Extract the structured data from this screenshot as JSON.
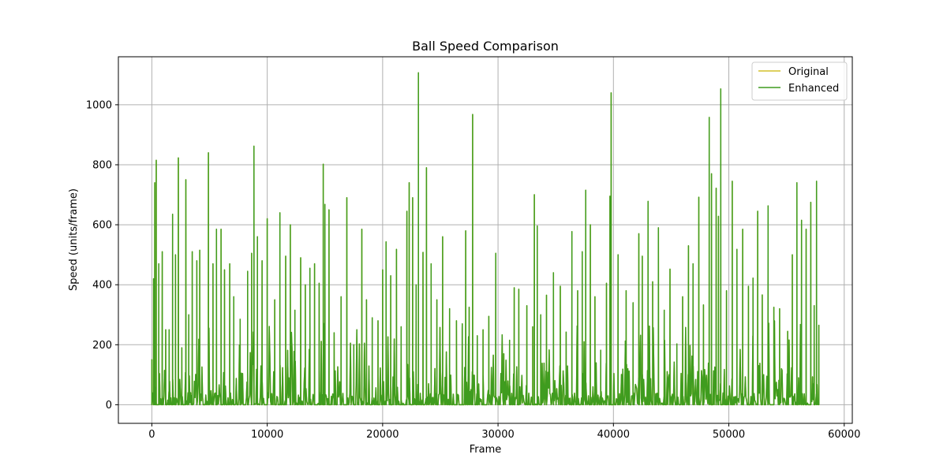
{
  "chart_data": {
    "type": "line",
    "title": "Ball Speed Comparison",
    "xlabel": "Frame",
    "ylabel": "Speed (units/frame)",
    "xlim": [
      -2900,
      60700
    ],
    "ylim": [
      -62,
      1160
    ],
    "xticks": [
      0,
      10000,
      20000,
      30000,
      40000,
      50000,
      60000
    ],
    "xtick_labels": [
      "0",
      "10000",
      "20000",
      "30000",
      "40000",
      "50000",
      "60000"
    ],
    "yticks": [
      0,
      200,
      400,
      600,
      800,
      1000
    ],
    "ytick_labels": [
      "0",
      "200",
      "400",
      "600",
      "800",
      "1000"
    ],
    "grid": true,
    "legend_position": "top-right",
    "x_max": 57800,
    "series": [
      {
        "name": "Original",
        "color": "#d4c12a",
        "peaks": [
          [
            0,
            150
          ],
          [
            150,
            420
          ],
          [
            250,
            740
          ],
          [
            380,
            815
          ],
          [
            600,
            470
          ],
          [
            900,
            510
          ],
          [
            1200,
            250
          ],
          [
            1500,
            250
          ],
          [
            1800,
            635
          ],
          [
            2050,
            500
          ],
          [
            2300,
            823
          ],
          [
            2600,
            190
          ],
          [
            2950,
            750
          ],
          [
            3200,
            300
          ],
          [
            3500,
            510
          ],
          [
            3900,
            480
          ],
          [
            4150,
            515
          ],
          [
            4900,
            840
          ],
          [
            5300,
            470
          ],
          [
            5600,
            585
          ],
          [
            6000,
            585
          ],
          [
            6300,
            450
          ],
          [
            6750,
            470
          ],
          [
            7100,
            360
          ],
          [
            7650,
            285
          ],
          [
            8300,
            445
          ],
          [
            8650,
            505
          ],
          [
            8850,
            862
          ],
          [
            9150,
            560
          ],
          [
            9550,
            480
          ],
          [
            10000,
            620
          ],
          [
            10650,
            350
          ],
          [
            11100,
            640
          ],
          [
            11600,
            495
          ],
          [
            12000,
            600
          ],
          [
            12400,
            315
          ],
          [
            12900,
            490
          ],
          [
            13300,
            400
          ],
          [
            13700,
            455
          ],
          [
            14100,
            470
          ],
          [
            14500,
            405
          ],
          [
            14850,
            802
          ],
          [
            15000,
            668
          ],
          [
            15350,
            650
          ],
          [
            15800,
            240
          ],
          [
            16400,
            360
          ],
          [
            16900,
            690
          ],
          [
            17500,
            200
          ],
          [
            18200,
            585
          ],
          [
            18600,
            350
          ],
          [
            19100,
            290
          ],
          [
            19600,
            280
          ],
          [
            20000,
            450
          ],
          [
            20300,
            543
          ],
          [
            20700,
            430
          ],
          [
            21200,
            518
          ],
          [
            21600,
            260
          ],
          [
            22100,
            645
          ],
          [
            22300,
            740
          ],
          [
            22600,
            690
          ],
          [
            22900,
            400
          ],
          [
            23100,
            1107
          ],
          [
            23500,
            508
          ],
          [
            23800,
            790
          ],
          [
            24200,
            470
          ],
          [
            24700,
            350
          ],
          [
            25200,
            560
          ],
          [
            25800,
            320
          ],
          [
            26400,
            280
          ],
          [
            26900,
            270
          ],
          [
            27200,
            580
          ],
          [
            27500,
            325
          ],
          [
            27800,
            968
          ],
          [
            28200,
            230
          ],
          [
            28700,
            250
          ],
          [
            29200,
            295
          ],
          [
            29800,
            505
          ],
          [
            30500,
            170
          ],
          [
            31000,
            215
          ],
          [
            31400,
            390
          ],
          [
            31800,
            385
          ],
          [
            32500,
            330
          ],
          [
            33000,
            260
          ],
          [
            33150,
            700
          ],
          [
            33400,
            596
          ],
          [
            33700,
            300
          ],
          [
            34200,
            365
          ],
          [
            34800,
            440
          ],
          [
            35400,
            395
          ],
          [
            35900,
            242
          ],
          [
            36400,
            577
          ],
          [
            36900,
            380
          ],
          [
            37300,
            510
          ],
          [
            37600,
            715
          ],
          [
            38000,
            600
          ],
          [
            38400,
            360
          ],
          [
            38900,
            182
          ],
          [
            39400,
            405
          ],
          [
            39700,
            695
          ],
          [
            39800,
            1040
          ],
          [
            40400,
            500
          ],
          [
            41100,
            380
          ],
          [
            41700,
            340
          ],
          [
            42200,
            570
          ],
          [
            42500,
            495
          ],
          [
            43000,
            678
          ],
          [
            43400,
            410
          ],
          [
            43900,
            590
          ],
          [
            44400,
            315
          ],
          [
            44900,
            452
          ],
          [
            45500,
            203
          ],
          [
            46000,
            360
          ],
          [
            46500,
            530
          ],
          [
            46900,
            470
          ],
          [
            47400,
            692
          ],
          [
            47800,
            333
          ],
          [
            48300,
            958
          ],
          [
            48500,
            770
          ],
          [
            48900,
            722
          ],
          [
            49100,
            628
          ],
          [
            49300,
            1053
          ],
          [
            49800,
            380
          ],
          [
            50300,
            745
          ],
          [
            50700,
            518
          ],
          [
            51200,
            585
          ],
          [
            51700,
            395
          ],
          [
            52100,
            422
          ],
          [
            52500,
            645
          ],
          [
            52900,
            366
          ],
          [
            53400,
            663
          ],
          [
            53900,
            325
          ],
          [
            54400,
            320
          ],
          [
            55100,
            245
          ],
          [
            55500,
            500
          ],
          [
            55900,
            740
          ],
          [
            56300,
            615
          ],
          [
            56700,
            585
          ],
          [
            57100,
            675
          ],
          [
            57400,
            330
          ],
          [
            57600,
            745
          ],
          [
            57800,
            265
          ]
        ]
      },
      {
        "name": "Enhanced",
        "color": "#3f9c1f"
      }
    ]
  }
}
